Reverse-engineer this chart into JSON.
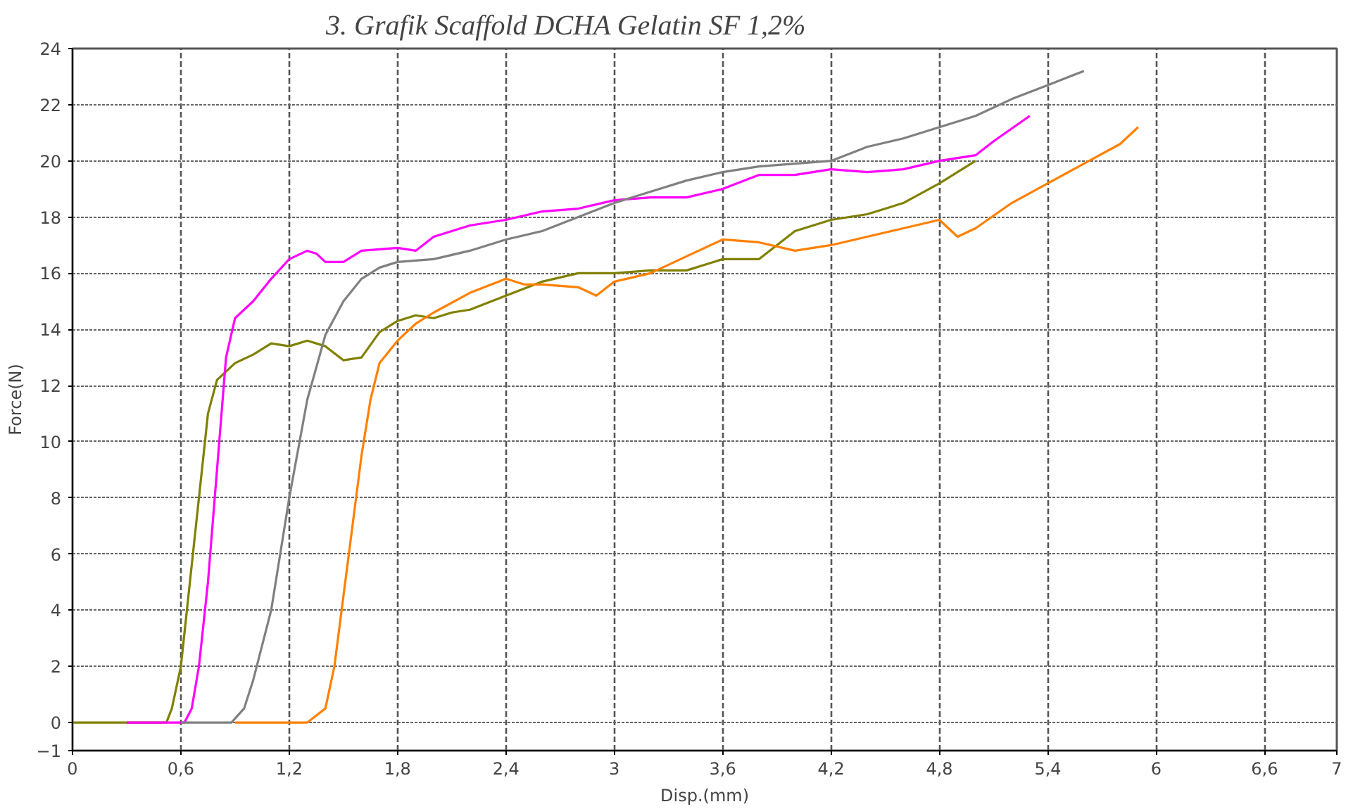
{
  "chart_data": {
    "type": "line",
    "title": "3. Grafik Scaffold DCHA Gelatin SF 1,2%",
    "xlabel": "Disp.(mm)",
    "ylabel": "Force(N)",
    "xlim": [
      0,
      7
    ],
    "ylim": [
      -1,
      24
    ],
    "xticks": [
      0,
      {
        "value": 0.6,
        "label": "0,6"
      },
      {
        "value": 1.2,
        "label": "1,2"
      },
      {
        "value": 1.8,
        "label": "1,8"
      },
      {
        "value": 2.4,
        "label": "2,4"
      },
      3,
      {
        "value": 3.6,
        "label": "3,6"
      },
      {
        "value": 4.2,
        "label": "4,2"
      },
      {
        "value": 4.8,
        "label": "4,8"
      },
      {
        "value": 5.4,
        "label": "5,4"
      },
      6,
      {
        "value": 6.6,
        "label": "6,6"
      },
      7
    ],
    "yticks": [
      -1,
      0,
      2,
      4,
      6,
      8,
      10,
      12,
      14,
      16,
      18,
      20,
      22,
      24
    ],
    "grid": true,
    "marker": "none",
    "line_style": "solid",
    "series": [
      {
        "color": "#808000",
        "x": [
          0,
          0.52,
          0.55,
          0.6,
          0.65,
          0.7,
          0.75,
          0.8,
          0.9,
          1.0,
          1.1,
          1.2,
          1.3,
          1.4,
          1.5,
          1.6,
          1.7,
          1.8,
          1.9,
          2.0,
          2.1,
          2.2,
          2.4,
          2.6,
          2.8,
          3.0,
          3.2,
          3.4,
          3.6,
          3.8,
          4.0,
          4.2,
          4.4,
          4.6,
          4.8,
          5.0
        ],
        "values": [
          0,
          0,
          0.5,
          2,
          5,
          8,
          11,
          12.2,
          12.8,
          13.1,
          13.5,
          13.4,
          13.6,
          13.4,
          12.9,
          13.0,
          13.9,
          14.3,
          14.5,
          14.4,
          14.6,
          14.7,
          15.2,
          15.7,
          16.0,
          16.0,
          16.1,
          16.1,
          16.5,
          16.5,
          17.5,
          17.9,
          18.1,
          18.5,
          19.2,
          20.0
        ]
      },
      {
        "color": "#ff00ff",
        "x": [
          0.3,
          0.62,
          0.66,
          0.7,
          0.75,
          0.8,
          0.85,
          0.9,
          1.0,
          1.1,
          1.2,
          1.3,
          1.35,
          1.4,
          1.5,
          1.6,
          1.8,
          1.9,
          2.0,
          2.2,
          2.4,
          2.6,
          2.8,
          3.0,
          3.2,
          3.4,
          3.6,
          3.8,
          4.0,
          4.2,
          4.4,
          4.6,
          4.8,
          5.0,
          5.1,
          5.3
        ],
        "values": [
          0,
          0,
          0.5,
          2,
          5,
          9,
          13,
          14.4,
          15,
          15.8,
          16.5,
          16.8,
          16.7,
          16.4,
          16.4,
          16.8,
          16.9,
          16.8,
          17.3,
          17.7,
          17.9,
          18.2,
          18.3,
          18.6,
          18.7,
          18.7,
          19.0,
          19.5,
          19.5,
          19.7,
          19.6,
          19.7,
          20.0,
          20.2,
          20.7,
          21.6
        ]
      },
      {
        "color": "#808080",
        "x": [
          0.6,
          0.88,
          0.95,
          1.0,
          1.1,
          1.2,
          1.3,
          1.4,
          1.5,
          1.6,
          1.7,
          1.8,
          2.0,
          2.2,
          2.4,
          2.6,
          2.8,
          3.0,
          3.2,
          3.4,
          3.6,
          3.8,
          4.0,
          4.2,
          4.4,
          4.6,
          4.8,
          5.0,
          5.2,
          5.4,
          5.6
        ],
        "values": [
          0,
          0,
          0.5,
          1.5,
          4,
          8,
          11.5,
          13.8,
          15,
          15.8,
          16.2,
          16.4,
          16.5,
          16.8,
          17.2,
          17.5,
          18,
          18.5,
          18.9,
          19.3,
          19.6,
          19.8,
          19.9,
          20.0,
          20.5,
          20.8,
          21.2,
          21.6,
          22.2,
          22.7,
          23.2
        ]
      },
      {
        "color": "#ff8000",
        "x": [
          0.9,
          1.3,
          1.4,
          1.45,
          1.5,
          1.55,
          1.6,
          1.65,
          1.7,
          1.8,
          1.9,
          2.0,
          2.2,
          2.4,
          2.5,
          2.6,
          2.8,
          2.9,
          3.0,
          3.2,
          3.4,
          3.6,
          3.8,
          4.0,
          4.2,
          4.4,
          4.6,
          4.8,
          4.9,
          5.0,
          5.2,
          5.4,
          5.6,
          5.8,
          5.9
        ],
        "values": [
          0,
          0,
          0.5,
          2,
          4.5,
          7,
          9.5,
          11.5,
          12.8,
          13.6,
          14.2,
          14.6,
          15.3,
          15.8,
          15.6,
          15.6,
          15.5,
          15.2,
          15.7,
          16.0,
          16.6,
          17.2,
          17.1,
          16.8,
          17.0,
          17.3,
          17.6,
          17.9,
          17.3,
          17.6,
          18.5,
          19.2,
          19.9,
          20.6,
          21.2
        ]
      }
    ]
  }
}
